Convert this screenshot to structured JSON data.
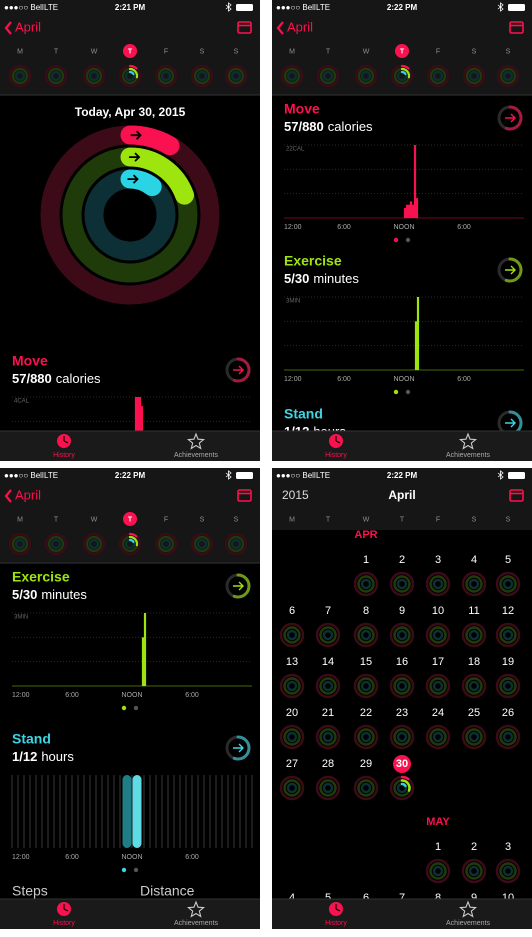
{
  "screens": [
    {
      "status": {
        "carrier": "●●●○○ Bell",
        "network": "LTE",
        "time": "2:21 PM"
      },
      "nav": {
        "back": "April"
      },
      "week": [
        "M",
        "T",
        "W",
        "T",
        "F",
        "S",
        "S"
      ],
      "selected_day": 3,
      "date_heading": "Today, Apr 30, 2015",
      "sections": [
        {
          "title": "Move",
          "color": "#fa114f",
          "progress": "57/880",
          "unit": "calories",
          "chart": {
            "label": "4CAL",
            "xlim": [
              0,
              24
            ],
            "ylim": [
              0,
              4
            ],
            "x": [
              12.4,
              12.6,
              12.8,
              13.0
            ],
            "values": [
              4,
              4,
              4,
              3.5
            ]
          }
        }
      ],
      "tabs": [
        "History",
        "Achievements"
      ]
    },
    {
      "status": {
        "carrier": "●●●○○ Bell",
        "network": "LTE",
        "time": "2:22 PM"
      },
      "nav": {
        "back": "April"
      },
      "week": [
        "M",
        "T",
        "W",
        "T",
        "F",
        "S",
        "S"
      ],
      "selected_day": 3,
      "sections": [
        {
          "title": "Move",
          "color": "#fa114f",
          "progress": "57/880",
          "unit": "calories",
          "chart": {
            "label": "22CAL",
            "xlim": [
              0,
              24
            ],
            "ylim": [
              0,
              22
            ],
            "x": [
              12.1,
              12.3,
              12.5,
              12.7,
              12.9,
              13.1,
              13.3
            ],
            "values": [
              3,
              4,
              4,
              5,
              4,
              22,
              6
            ],
            "xticks": [
              {
                "value": 0,
                "label": "12:00"
              },
              {
                "value": 6,
                "label": "6:00"
              },
              {
                "value": 12,
                "label": "NOON"
              },
              {
                "value": 18,
                "label": "6:00"
              }
            ]
          }
        },
        {
          "title": "Exercise",
          "color": "#9ee40e",
          "progress": "5/30",
          "unit": "minutes",
          "chart": {
            "label": "3MIN",
            "xlim": [
              0,
              24
            ],
            "ylim": [
              0,
              3
            ],
            "x": [
              13.2,
              13.4
            ],
            "values": [
              2,
              3
            ],
            "xticks": [
              {
                "value": 0,
                "label": "12:00"
              },
              {
                "value": 6,
                "label": "6:00"
              },
              {
                "value": 12,
                "label": "NOON"
              },
              {
                "value": 18,
                "label": "6:00"
              }
            ]
          }
        },
        {
          "title": "Stand",
          "color": "#3ed4e2",
          "progress": "1/12",
          "unit": "hours"
        }
      ],
      "tabs": [
        "History",
        "Achievements"
      ]
    },
    {
      "status": {
        "carrier": "●●●○○ Bell",
        "network": "LTE",
        "time": "2:22 PM"
      },
      "nav": {
        "back": "April"
      },
      "week": [
        "M",
        "T",
        "W",
        "T",
        "F",
        "S",
        "S"
      ],
      "selected_day": 3,
      "sections": [
        {
          "title": "Exercise",
          "color": "#9ee40e",
          "progress": "5/30",
          "unit": "minutes",
          "chart": {
            "label": "3MIN",
            "xlim": [
              0,
              24
            ],
            "ylim": [
              0,
              3
            ],
            "x": [
              13.1,
              13.3
            ],
            "values": [
              2,
              3
            ],
            "xticks": [
              {
                "value": 0,
                "label": "12:00"
              },
              {
                "value": 6,
                "label": "6:00"
              },
              {
                "value": 12,
                "label": "NOON"
              },
              {
                "value": 18,
                "label": "6:00"
              }
            ]
          }
        },
        {
          "title": "Stand",
          "color": "#3ed4e2",
          "progress": "1/12",
          "unit": "hours",
          "chart": {
            "xlim": [
              0,
              24
            ],
            "ylim": [
              0,
              1
            ],
            "x": [
              11.5,
              12.5
            ],
            "values": [
              1,
              1
            ],
            "colors": [
              "#1f7d86",
              "#5fdbe6"
            ],
            "xticks": [
              {
                "value": 0,
                "label": "12:00"
              },
              {
                "value": 6,
                "label": "6:00"
              },
              {
                "value": 12,
                "label": "NOON"
              },
              {
                "value": 18,
                "label": "6:00"
              }
            ]
          }
        }
      ],
      "more": [
        "Steps",
        "Distance"
      ],
      "tabs": [
        "History",
        "Achievements"
      ]
    },
    {
      "status": {
        "carrier": "●●●○○ Bell",
        "network": "LTE",
        "time": "2:22 PM"
      },
      "nav": {
        "year": "2015",
        "month": "April"
      },
      "week": [
        "M",
        "T",
        "W",
        "T",
        "F",
        "S",
        "S"
      ],
      "calendar": {
        "months": [
          {
            "name": "APR",
            "selected": 30,
            "weeks": [
              [
                null,
                null,
                1,
                2,
                3,
                4,
                5
              ],
              [
                6,
                7,
                8,
                9,
                10,
                11,
                12
              ],
              [
                13,
                14,
                15,
                16,
                17,
                18,
                19
              ],
              [
                20,
                21,
                22,
                23,
                24,
                25,
                26
              ],
              [
                27,
                28,
                29,
                30,
                null,
                null,
                null
              ]
            ]
          },
          {
            "name": "MAY",
            "weeks": [
              [
                null,
                null,
                null,
                null,
                1,
                2,
                3
              ],
              [
                4,
                5,
                6,
                7,
                8,
                9,
                10
              ]
            ]
          }
        ]
      },
      "tabs": [
        "History",
        "Achievements"
      ]
    }
  ]
}
